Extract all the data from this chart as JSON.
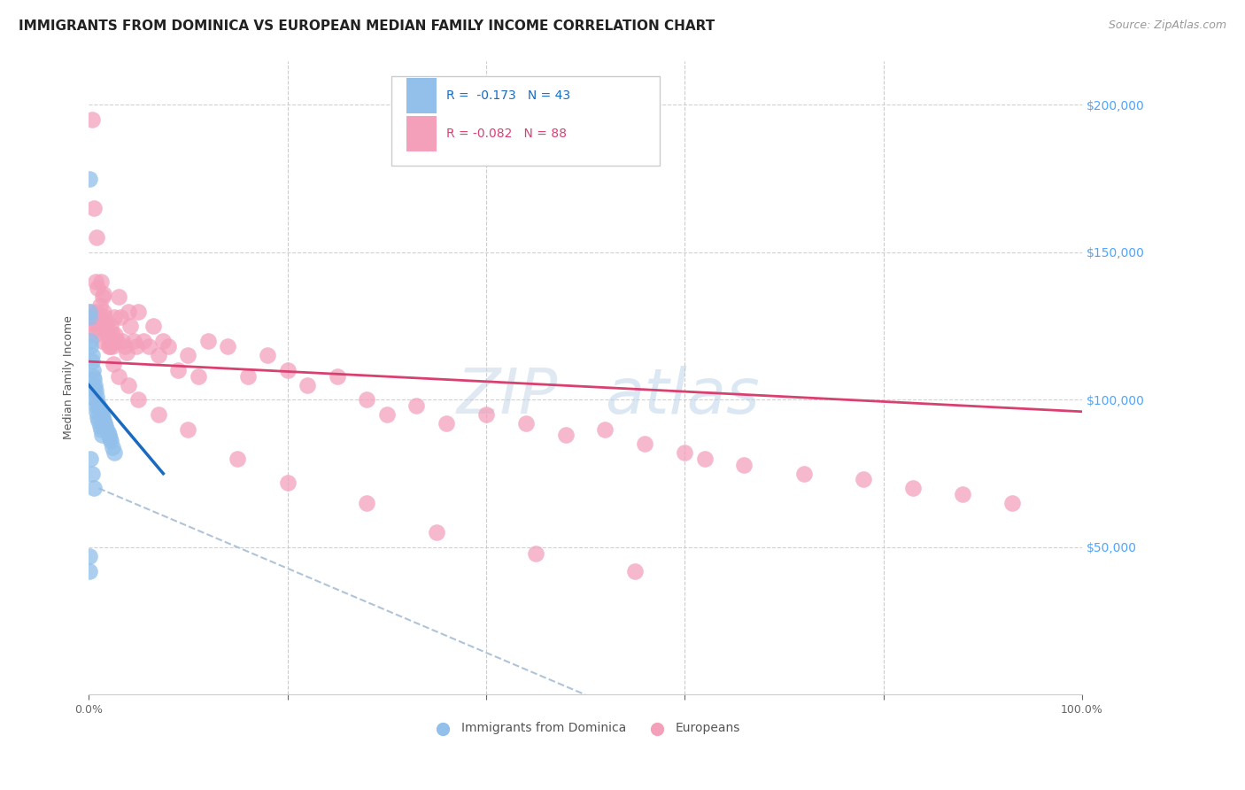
{
  "title": "IMMIGRANTS FROM DOMINICA VS EUROPEAN MEDIAN FAMILY INCOME CORRELATION CHART",
  "source": "Source: ZipAtlas.com",
  "ylabel": "Median Family Income",
  "ytick_labels": [
    "$50,000",
    "$100,000",
    "$150,000",
    "$200,000"
  ],
  "ytick_values": [
    50000,
    100000,
    150000,
    200000
  ],
  "legend_entries": [
    {
      "label": "R =  -0.173   N = 43",
      "color_fill": "#aec6f0",
      "text_color": "#1a6abf"
    },
    {
      "label": "R = -0.082   N = 88",
      "color_fill": "#f4b0c8",
      "text_color": "#d94070"
    }
  ],
  "legend_bottom": [
    "Immigrants from Dominica",
    "Europeans"
  ],
  "blue_scatter_x": [
    0.001,
    0.002,
    0.003,
    0.004,
    0.005,
    0.006,
    0.007,
    0.008,
    0.009,
    0.01,
    0.011,
    0.012,
    0.013,
    0.014,
    0.015,
    0.016,
    0.017,
    0.018,
    0.019,
    0.02,
    0.021,
    0.022,
    0.024,
    0.026,
    0.001,
    0.002,
    0.003,
    0.004,
    0.005,
    0.006,
    0.007,
    0.008,
    0.009,
    0.01,
    0.011,
    0.012,
    0.013,
    0.002,
    0.003,
    0.005,
    0.001,
    0.001,
    0.001
  ],
  "blue_scatter_y": [
    130000,
    120000,
    115000,
    110000,
    107000,
    105000,
    103000,
    101000,
    99000,
    98000,
    97000,
    96000,
    95000,
    94000,
    93000,
    92000,
    91000,
    90000,
    89000,
    88000,
    87000,
    86000,
    84000,
    82000,
    128000,
    118000,
    113000,
    108000,
    104000,
    100000,
    98000,
    96000,
    94000,
    93000,
    91000,
    90000,
    88000,
    80000,
    75000,
    70000,
    175000,
    47000,
    42000
  ],
  "pink_scatter_x": [
    0.002,
    0.003,
    0.004,
    0.005,
    0.006,
    0.007,
    0.008,
    0.009,
    0.01,
    0.011,
    0.012,
    0.013,
    0.014,
    0.015,
    0.016,
    0.017,
    0.018,
    0.019,
    0.02,
    0.021,
    0.022,
    0.023,
    0.024,
    0.025,
    0.026,
    0.027,
    0.028,
    0.03,
    0.032,
    0.034,
    0.036,
    0.038,
    0.04,
    0.042,
    0.045,
    0.048,
    0.05,
    0.055,
    0.06,
    0.065,
    0.07,
    0.075,
    0.08,
    0.09,
    0.1,
    0.11,
    0.12,
    0.14,
    0.16,
    0.18,
    0.2,
    0.22,
    0.25,
    0.28,
    0.3,
    0.33,
    0.36,
    0.4,
    0.44,
    0.48,
    0.52,
    0.56,
    0.6,
    0.62,
    0.66,
    0.72,
    0.78,
    0.83,
    0.88,
    0.93,
    0.003,
    0.005,
    0.008,
    0.012,
    0.015,
    0.02,
    0.025,
    0.03,
    0.04,
    0.05,
    0.07,
    0.1,
    0.15,
    0.2,
    0.28,
    0.35,
    0.45,
    0.55
  ],
  "pink_scatter_y": [
    130000,
    128000,
    126000,
    124000,
    122000,
    140000,
    130000,
    138000,
    125000,
    132000,
    128000,
    120000,
    135000,
    130000,
    128000,
    126000,
    124000,
    122000,
    120000,
    118000,
    125000,
    123000,
    118000,
    120000,
    128000,
    122000,
    120000,
    135000,
    128000,
    120000,
    118000,
    116000,
    130000,
    125000,
    120000,
    118000,
    130000,
    120000,
    118000,
    125000,
    115000,
    120000,
    118000,
    110000,
    115000,
    108000,
    120000,
    118000,
    108000,
    115000,
    110000,
    105000,
    108000,
    100000,
    95000,
    98000,
    92000,
    95000,
    92000,
    88000,
    90000,
    85000,
    82000,
    80000,
    78000,
    75000,
    73000,
    70000,
    68000,
    65000,
    195000,
    165000,
    155000,
    140000,
    136000,
    118000,
    112000,
    108000,
    105000,
    100000,
    95000,
    90000,
    80000,
    72000,
    65000,
    55000,
    48000,
    42000
  ],
  "blue_line_x": [
    0.0,
    0.075
  ],
  "blue_line_y": [
    105000,
    75000
  ],
  "pink_line_x": [
    0.0,
    1.0
  ],
  "pink_line_y": [
    113000,
    96000
  ],
  "dash_line_x": [
    0.01,
    0.5
  ],
  "dash_line_y": [
    70000,
    0
  ],
  "xlim": [
    0.0,
    1.0
  ],
  "ylim": [
    0,
    215000
  ],
  "background_color": "#ffffff",
  "scatter_blue_color": "#92c0ea",
  "scatter_pink_color": "#f4a0bb",
  "trend_blue_color": "#1a6abf",
  "trend_pink_color": "#d94070",
  "dash_color": "#b0c4d8",
  "scatter_size": 180,
  "scatter_alpha": 0.75,
  "title_fontsize": 11,
  "source_fontsize": 9,
  "axis_label_fontsize": 9,
  "tick_fontsize": 9,
  "legend_fontsize": 10,
  "watermark_text": "ZIPatlas",
  "watermark_zip": "ZIP",
  "watermark_atlas": "atlas"
}
